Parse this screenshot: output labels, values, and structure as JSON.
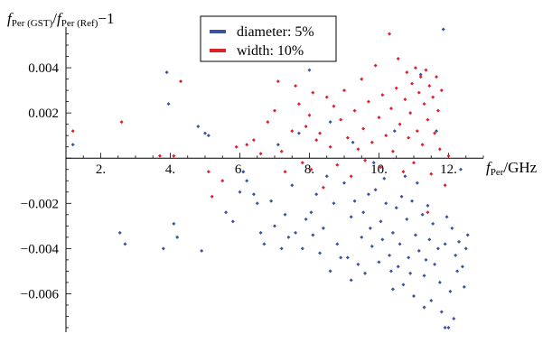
{
  "chart_data": {
    "type": "scatter",
    "ylabel_parts": {
      "f1": "f",
      "sub1": "Per (GST)",
      "slash": "/",
      "f2": "f",
      "sub2": "Per (Ref)",
      "tail": "−1"
    },
    "xlabel_parts": {
      "f": "f",
      "sub": "Per",
      "tail": "/GHz"
    },
    "xlim": [
      1.0,
      13.0
    ],
    "ylim": [
      -0.0077,
      0.0058
    ],
    "x_ticks": [
      2,
      4,
      6,
      8,
      10,
      12
    ],
    "x_tick_labels": [
      "2.",
      "4.",
      "6.",
      "8.",
      "10.",
      "12."
    ],
    "y_ticks": [
      0.004,
      0.002,
      -0.002,
      -0.004,
      -0.006
    ],
    "y_tick_labels": [
      "0.004",
      "0.002",
      "−0.002",
      "−0.004",
      "−0.006"
    ],
    "legend_position": "top-center",
    "colors": {
      "diameter": "#3a52a0",
      "width": "#e0202a"
    },
    "series": [
      {
        "name": "diameter: 5%",
        "key": "diameter",
        "points": [
          [
            1.2,
            0.0006
          ],
          [
            2.55,
            -0.0033
          ],
          [
            2.7,
            -0.0038
          ],
          [
            3.8,
            -0.004
          ],
          [
            3.9,
            0.0038
          ],
          [
            3.95,
            0.0024
          ],
          [
            4.1,
            -0.0029
          ],
          [
            4.2,
            -0.0035
          ],
          [
            4.9,
            -0.0041
          ],
          [
            4.8,
            0.0014
          ],
          [
            5.0,
            0.0011
          ],
          [
            5.1,
            0.001
          ],
          [
            5.6,
            -0.0024
          ],
          [
            5.8,
            -0.0028
          ],
          [
            6.0,
            -0.0015
          ],
          [
            6.1,
            -0.0006
          ],
          [
            6.2,
            -0.001
          ],
          [
            6.4,
            -0.0016
          ],
          [
            6.5,
            -0.002
          ],
          [
            6.6,
            -0.0033
          ],
          [
            6.7,
            -0.0038
          ],
          [
            6.9,
            -0.0019
          ],
          [
            7.0,
            -0.003
          ],
          [
            7.1,
            0.0006
          ],
          [
            7.2,
            -0.004
          ],
          [
            7.3,
            -0.0025
          ],
          [
            7.4,
            -0.0035
          ],
          [
            7.5,
            -0.0012
          ],
          [
            7.6,
            -0.0033
          ],
          [
            7.7,
            0.0011
          ],
          [
            7.8,
            -0.004
          ],
          [
            7.9,
            -0.0027
          ],
          [
            8.0,
            0.0039
          ],
          [
            8.05,
            -0.0024
          ],
          [
            8.1,
            -0.0034
          ],
          [
            8.2,
            -0.0016
          ],
          [
            8.3,
            -0.0042
          ],
          [
            8.4,
            -0.0031
          ],
          [
            8.5,
            -0.0008
          ],
          [
            8.6,
            0.0016
          ],
          [
            8.7,
            -0.002
          ],
          [
            8.8,
            -0.0038
          ],
          [
            8.9,
            -0.0044
          ],
          [
            9.0,
            -0.0011
          ],
          [
            9.1,
            -0.0044
          ],
          [
            9.2,
            -0.0026
          ],
          [
            9.25,
            0.0007
          ],
          [
            9.3,
            -0.0019
          ],
          [
            9.4,
            -0.0047
          ],
          [
            9.5,
            -0.0035
          ],
          [
            9.55,
            -0.0024
          ],
          [
            9.6,
            -0.0051
          ],
          [
            9.7,
            -0.0016
          ],
          [
            9.75,
            -0.0031
          ],
          [
            9.8,
            -0.0039
          ],
          [
            9.85,
            -0.0002
          ],
          [
            9.9,
            -0.0014
          ],
          [
            10.0,
            -0.0046
          ],
          [
            10.05,
            -0.0028
          ],
          [
            10.1,
            -0.0036
          ],
          [
            10.15,
            -0.0009
          ],
          [
            10.2,
            -0.002
          ],
          [
            10.3,
            -0.0043
          ],
          [
            10.35,
            -0.005
          ],
          [
            10.4,
            -0.0033
          ],
          [
            10.45,
            0.0012
          ],
          [
            10.5,
            -0.0022
          ],
          [
            10.55,
            -0.0048
          ],
          [
            10.6,
            -0.0038
          ],
          [
            10.65,
            -0.0017
          ],
          [
            10.7,
            -0.0056
          ],
          [
            10.75,
            -0.0008
          ],
          [
            10.8,
            -0.0027
          ],
          [
            10.85,
            -0.0044
          ],
          [
            10.9,
            -0.0051
          ],
          [
            10.95,
            -0.0019
          ],
          [
            11.0,
            -0.0061
          ],
          [
            11.05,
            -0.0034
          ],
          [
            11.1,
            -0.0011
          ],
          [
            11.15,
            -0.0041
          ],
          [
            11.2,
            0.0037
          ],
          [
            11.25,
            -0.0025
          ],
          [
            11.3,
            -0.0052
          ],
          [
            11.35,
            -0.0045
          ],
          [
            11.4,
            -0.0021
          ],
          [
            11.45,
            -0.0036
          ],
          [
            11.5,
            -0.0063
          ],
          [
            11.55,
            -0.0029
          ],
          [
            11.6,
            -0.0047
          ],
          [
            11.65,
            0.0012
          ],
          [
            11.7,
            -0.004
          ],
          [
            11.75,
            -0.0055
          ],
          [
            11.8,
            -0.0068
          ],
          [
            11.85,
            0.0057
          ],
          [
            11.9,
            -0.0038
          ],
          [
            11.95,
            -0.0026
          ],
          [
            12.0,
            -0.0075
          ],
          [
            12.05,
            -0.0059
          ],
          [
            12.1,
            -0.0031
          ],
          [
            12.15,
            -0.0071
          ],
          [
            12.2,
            -0.0043
          ],
          [
            12.25,
            -0.005
          ],
          [
            12.3,
            -0.0037
          ],
          [
            12.35,
            -0.0005
          ],
          [
            12.4,
            -0.0048
          ],
          [
            12.45,
            -0.0057
          ],
          [
            12.5,
            -0.004
          ],
          [
            12.55,
            -0.0034
          ],
          [
            11.3,
            -0.0066
          ],
          [
            10.4,
            -0.0058
          ],
          [
            9.2,
            -0.0054
          ],
          [
            8.6,
            -0.005
          ],
          [
            11.9,
            -0.0075
          ]
        ]
      },
      {
        "name": "width: 10%",
        "key": "width",
        "points": [
          [
            1.2,
            0.0012
          ],
          [
            2.6,
            0.0016
          ],
          [
            3.7,
            0.0001
          ],
          [
            4.1,
            0.0001
          ],
          [
            4.3,
            0.0034
          ],
          [
            5.1,
            -0.0006
          ],
          [
            5.2,
            -0.0017
          ],
          [
            5.5,
            -0.001
          ],
          [
            5.9,
            0.0005
          ],
          [
            6.2,
            0.0006
          ],
          [
            6.4,
            0.0008
          ],
          [
            6.6,
            0.0002
          ],
          [
            6.8,
            0.0016
          ],
          [
            7.0,
            0.0021
          ],
          [
            7.1,
            0.0034
          ],
          [
            7.2,
            0.0003
          ],
          [
            7.3,
            -0.0006
          ],
          [
            7.5,
            0.0012
          ],
          [
            7.6,
            0.0032
          ],
          [
            7.7,
            0.0024
          ],
          [
            7.8,
            -0.0002
          ],
          [
            7.9,
            0.0014
          ],
          [
            8.0,
            0.0019
          ],
          [
            8.05,
            -0.0005
          ],
          [
            8.1,
            0.0029
          ],
          [
            8.2,
            0.0008
          ],
          [
            8.3,
            0.0011
          ],
          [
            8.4,
            -0.0013
          ],
          [
            8.5,
            0.0027
          ],
          [
            8.6,
            0.0005
          ],
          [
            8.7,
            0.0023
          ],
          [
            8.8,
            -0.0003
          ],
          [
            8.9,
            0.0017
          ],
          [
            9.0,
            0.003
          ],
          [
            9.1,
            0.0009
          ],
          [
            9.2,
            -0.0008
          ],
          [
            9.3,
            0.0021
          ],
          [
            9.4,
            0.0004
          ],
          [
            9.5,
            0.0035
          ],
          [
            9.55,
            0.0013
          ],
          [
            9.6,
            -0.0001
          ],
          [
            9.7,
            0.0025
          ],
          [
            9.8,
            0.0007
          ],
          [
            9.9,
            0.0041
          ],
          [
            10.0,
            0.0018
          ],
          [
            10.05,
            -0.0004
          ],
          [
            10.1,
            0.0028
          ],
          [
            10.2,
            0.001
          ],
          [
            10.3,
            0.0055
          ],
          [
            10.35,
            0.0022
          ],
          [
            10.4,
            0.0003
          ],
          [
            10.5,
            0.0031
          ],
          [
            10.55,
            0.0044
          ],
          [
            10.6,
            0.0015
          ],
          [
            10.7,
            -0.0006
          ],
          [
            10.75,
            0.0026
          ],
          [
            10.8,
            0.0038
          ],
          [
            10.85,
            0.0009
          ],
          [
            10.9,
            0.002
          ],
          [
            10.95,
            0.0033
          ],
          [
            11.0,
            -0.0002
          ],
          [
            11.05,
            0.004
          ],
          [
            11.1,
            0.0012
          ],
          [
            11.15,
            0.0029
          ],
          [
            11.2,
            0.0036
          ],
          [
            11.25,
            0.0006
          ],
          [
            11.3,
            0.0024
          ],
          [
            11.35,
            0.0039
          ],
          [
            11.4,
            0.0017
          ],
          [
            11.45,
            0.0032
          ],
          [
            11.5,
            -0.0007
          ],
          [
            11.55,
            0.0027
          ],
          [
            11.6,
            0.0011
          ],
          [
            11.65,
            0.0036
          ],
          [
            11.7,
            0.0021
          ],
          [
            11.75,
            0.0004
          ],
          [
            11.8,
            0.003
          ],
          [
            11.9,
            -0.0012
          ],
          [
            12.0,
            0.0001
          ],
          [
            11.4,
            -0.0024
          ]
        ]
      }
    ]
  }
}
